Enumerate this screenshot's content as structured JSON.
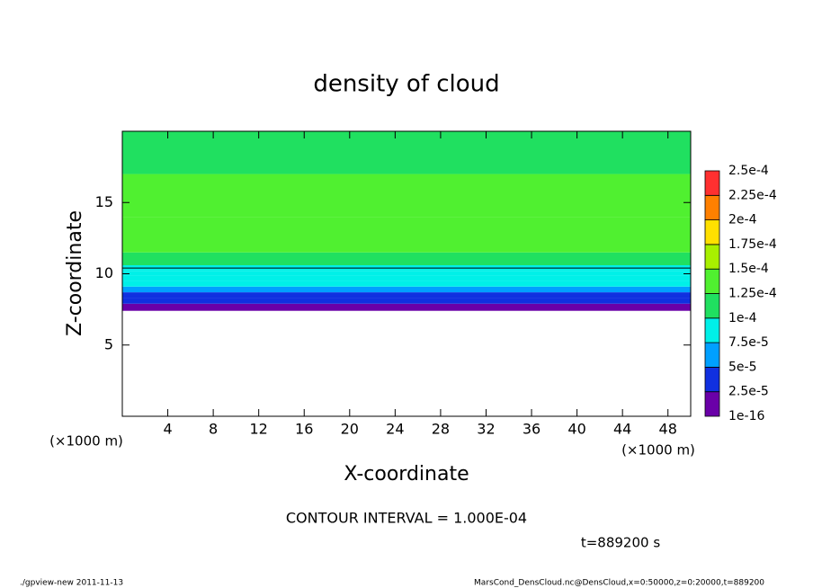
{
  "chart_data": {
    "type": "contour",
    "title": "density of cloud",
    "x_label": "X-coordinate",
    "y_label": "Z-coordinate",
    "x_unit_left": "(×1000 m)",
    "x_unit_right": "(×1000 m)",
    "xlim": [
      0,
      50
    ],
    "ylim": [
      0,
      20
    ],
    "xticks": [
      4,
      8,
      12,
      16,
      20,
      24,
      28,
      32,
      36,
      40,
      44,
      48
    ],
    "yticks": [
      5,
      10,
      15
    ],
    "profile": {
      "z": [
        7.4,
        7.9,
        8.3,
        8.7,
        9.1,
        9.5,
        9.9,
        10.2,
        10.6,
        11.5,
        14,
        17,
        20
      ],
      "values": [
        1e-05,
        3e-05,
        4.5e-05,
        6e-05,
        8e-05,
        9e-05,
        9.5e-05,
        9.8e-05,
        0.000102,
        0.00013,
        0.00013,
        0.00011,
        0.00011
      ]
    },
    "levels": [
      {
        "value": 1e-16,
        "label": "1e-16"
      },
      {
        "value": 2.5e-05,
        "label": "2.5e-5"
      },
      {
        "value": 5e-05,
        "label": "5e-5"
      },
      {
        "value": 7.5e-05,
        "label": "7.5e-5"
      },
      {
        "value": 0.0001,
        "label": "1e-4"
      },
      {
        "value": 0.000125,
        "label": "1.25e-4"
      },
      {
        "value": 0.00015,
        "label": "1.5e-4"
      },
      {
        "value": 0.000175,
        "label": "1.75e-4"
      },
      {
        "value": 0.0002,
        "label": "2e-4"
      },
      {
        "value": 0.000225,
        "label": "2.25e-4"
      },
      {
        "value": 0.00025,
        "label": "2.5e-4"
      }
    ],
    "colors": [
      "#6a00a8",
      "#1030e0",
      "#00a0ff",
      "#00f0e8",
      "#20e060",
      "#50f030",
      "#a8f000",
      "#ffe000",
      "#ff8000",
      "#ff3030"
    ],
    "contour_interval": {
      "value": 0.0001,
      "label": "CONTOUR INTERVAL = 1.000E-04"
    },
    "time_label": "t=889200 s",
    "footer_left": "./gpview-new  2011-11-13",
    "footer_right": "MarsCond_DensCloud.nc@DensCloud,x=0:50000,z=0:20000,t=889200"
  }
}
